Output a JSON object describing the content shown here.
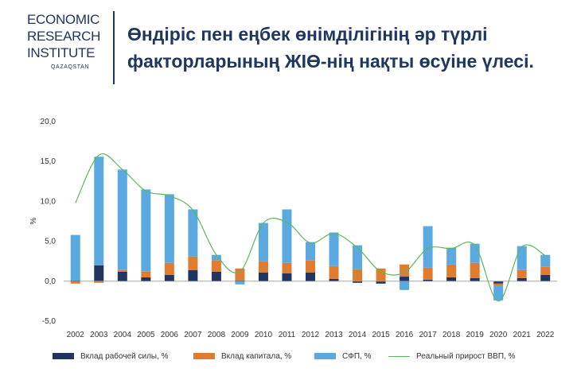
{
  "logo": {
    "lines": [
      "ECONOMIC",
      "RESEARCH",
      "INSTITUTE"
    ],
    "sub": "QAZAQSTAN"
  },
  "title": {
    "line1": "Өндіріс пен еңбек өнімділігінің әр түрлі",
    "line2": "факторларының ЖІӨ-нің нақты өсуіне үлесі."
  },
  "chart_data": {
    "type": "bar",
    "stacked": true,
    "categories": [
      "2002",
      "2003",
      "2004",
      "2005",
      "2006",
      "2007",
      "2008",
      "2009",
      "2010",
      "2011",
      "2012",
      "2013",
      "2014",
      "2015",
      "2016",
      "2017",
      "2018",
      "2019",
      "2020",
      "2021",
      "2022"
    ],
    "ylabel": "%",
    "ylim": [
      -5,
      20
    ],
    "yticks": [
      "-5,0",
      "0,0",
      "5,0",
      "10,0",
      "15,0",
      "20,0"
    ],
    "ytick_values": [
      -5,
      0,
      5,
      10,
      15,
      20
    ],
    "series": [
      {
        "name": "Вклад рабочей силы, %",
        "color": "#1f3660",
        "values": [
          0.1,
          2.0,
          1.2,
          0.5,
          0.8,
          1.4,
          1.2,
          0.1,
          1.1,
          1.0,
          1.1,
          0.3,
          -0.2,
          -0.3,
          0.6,
          0.2,
          0.5,
          0.4,
          -0.3,
          0.4,
          0.8
        ]
      },
      {
        "name": "Вклад капитала, %",
        "color": "#e07b30",
        "values": [
          -0.3,
          -0.2,
          0.2,
          0.7,
          1.5,
          1.7,
          1.4,
          1.5,
          1.4,
          1.3,
          1.5,
          1.6,
          1.5,
          1.6,
          1.5,
          1.5,
          1.6,
          1.9,
          -0.3,
          1.0,
          1.0
        ]
      },
      {
        "name": "СФП, %",
        "color": "#5aa9e0",
        "values": [
          5.7,
          13.6,
          12.6,
          10.3,
          8.6,
          5.9,
          0.7,
          -0.4,
          4.8,
          6.7,
          2.3,
          4.2,
          3.0,
          0,
          -1.1,
          5.2,
          2.1,
          2.4,
          -1.8,
          3.0,
          1.5
        ]
      }
    ],
    "line_series": {
      "name": "Реальный прирост ВВП, %",
      "color": "#5cb85c",
      "values": [
        9.8,
        15.8,
        14.0,
        11.3,
        10.7,
        8.9,
        3.3,
        1.2,
        7.3,
        7.4,
        4.8,
        6.0,
        4.2,
        1.2,
        1.1,
        4.1,
        4.1,
        4.5,
        -2.5,
        4.3,
        3.2
      ]
    },
    "grid": false,
    "legend_position": "bottom"
  }
}
